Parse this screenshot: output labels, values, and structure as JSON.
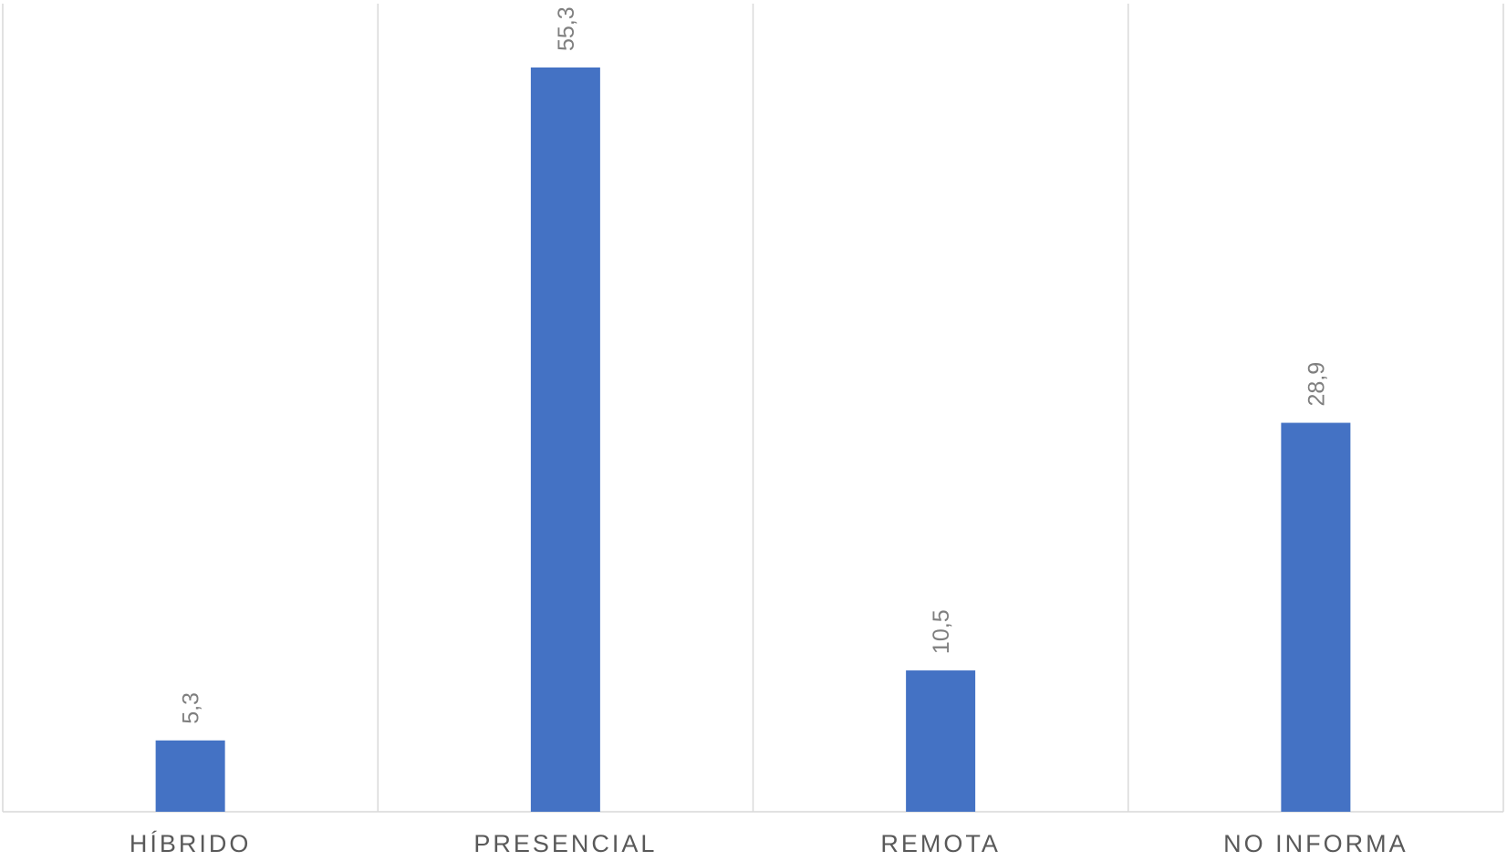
{
  "chart_data": {
    "type": "bar",
    "categories": [
      "HÍBRIDO",
      "PRESENCIAL",
      "REMOTA",
      "NO INFORMA"
    ],
    "values": [
      5.3,
      55.3,
      10.5,
      28.9
    ],
    "data_labels": [
      "5,3",
      "55,3",
      "10,5",
      "28,9"
    ],
    "title": "",
    "xlabel": "",
    "ylabel": "",
    "ylim": [
      0,
      60
    ],
    "grid": "vertical category separators",
    "legend": "none",
    "bar_color": "#4472C4",
    "gridline_color": "#D9D9D9",
    "category_label_color": "#595959",
    "data_label_color": "#7F7F7F"
  }
}
